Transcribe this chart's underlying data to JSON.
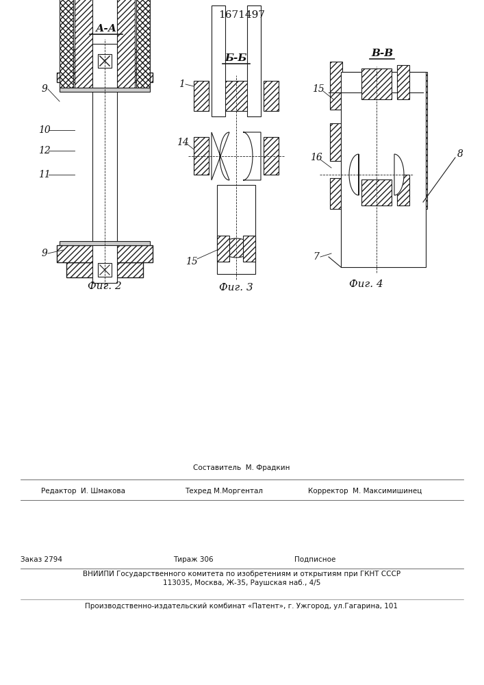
{
  "patent_number": "1671497",
  "bg_color": "#ffffff",
  "fig2_caption": "Фиг. 2",
  "fig3_caption": "Фиг. 3",
  "fig4_caption": "Фиг. 4",
  "section_aa": "А-А",
  "section_bb": "Б-Б",
  "section_vv": "В-В",
  "label_9a": "9",
  "label_10": "10",
  "label_12": "12",
  "label_11": "11",
  "label_9b": "9",
  "label_1": "1",
  "label_14": "14",
  "label_15a": "15",
  "label_16": "16",
  "label_15b": "15",
  "label_7": "7",
  "label_8": "8",
  "footer_line1": "Составитель  М. Фрадкин",
  "footer_line2_left": "Редактор  И. Шмакова",
  "footer_line2_mid": "Техред М.Моргентал",
  "footer_line2_right": "Корректор  М. Максимишинец",
  "footer_line3_left": "Заказ 2794",
  "footer_line3_mid": "Тираж 306",
  "footer_line3_right": "Подписное",
  "footer_line4": "ВНИИПИ Государственного комитета по изобретениям и открытиям при ГКНТ СССР",
  "footer_line5": "113035, Москва, Ж-35, Раушская наб., 4/5",
  "footer_line6": "Производственно-издательский комбинат «Патент», г. Ужгород, ул.Гагарина, 101",
  "line_color": "#1a1a1a",
  "text_color": "#111111"
}
